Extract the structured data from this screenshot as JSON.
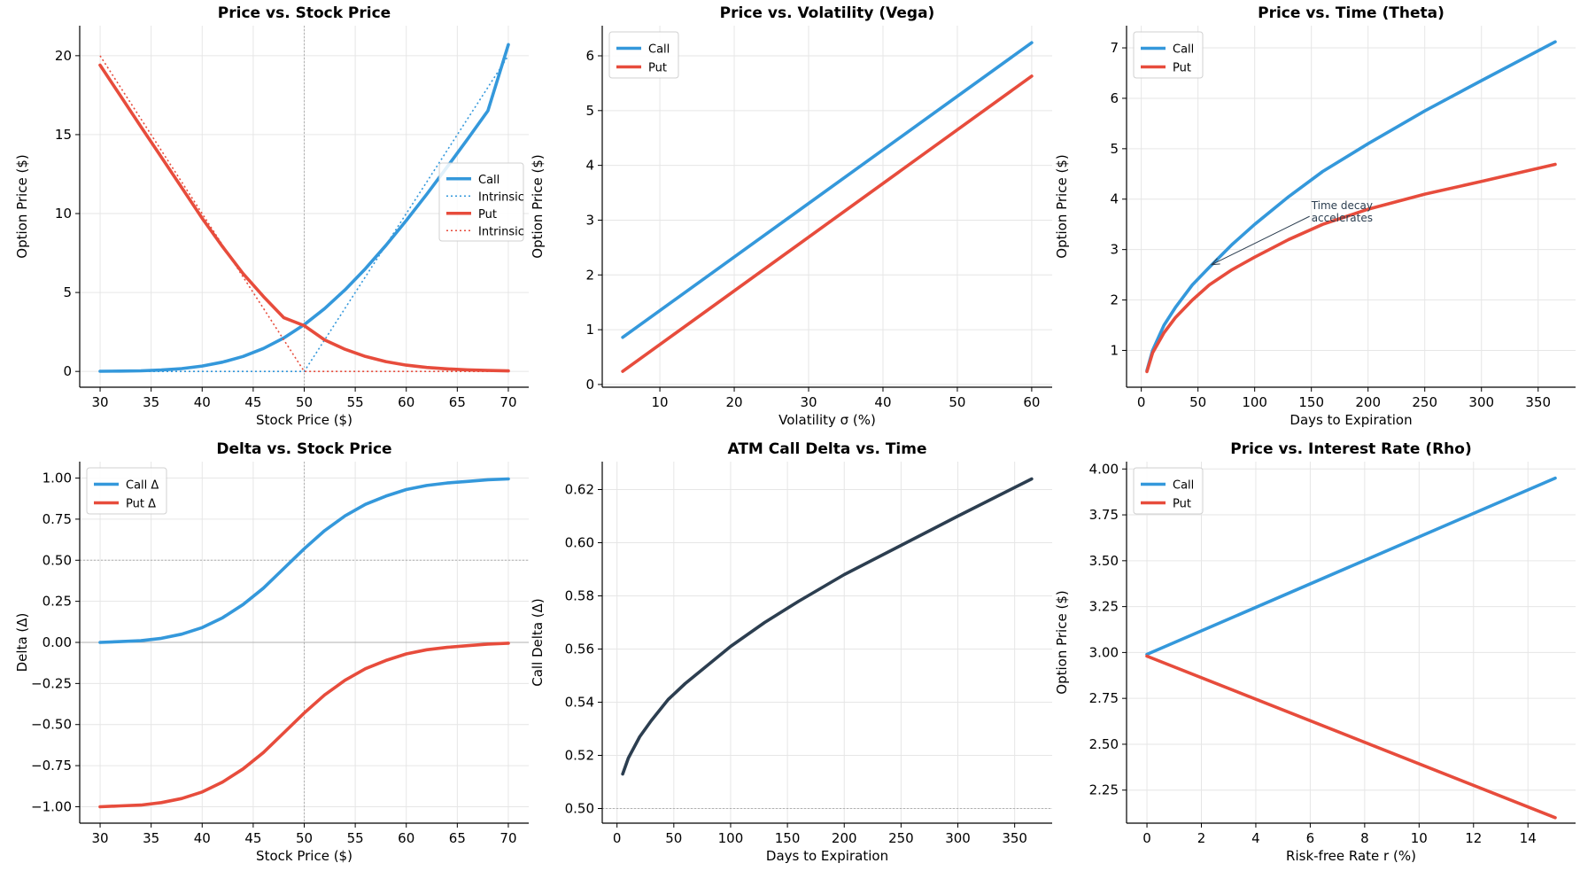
{
  "colors": {
    "call": "#3498db",
    "put": "#e74c3c",
    "dark": "#2c3e50",
    "grid": "#e6e6e6",
    "ref": "#b0b0b0"
  },
  "chart_data": [
    {
      "type": "line",
      "title": "Price vs. Stock Price",
      "xlabel": "Stock Price ($)",
      "ylabel": "Option Price ($)",
      "xlim": [
        28,
        72
      ],
      "ylim": [
        -1,
        21.9
      ],
      "xticks": [
        30,
        35,
        40,
        45,
        50,
        55,
        60,
        65,
        70
      ],
      "yticks": [
        0,
        5,
        10,
        15,
        20
      ],
      "grid": true,
      "legend": "center-right",
      "vlines": [
        50
      ],
      "series": [
        {
          "name": "Call",
          "color": "#3498db",
          "style": "solid",
          "x": [
            30,
            32,
            34,
            36,
            38,
            40,
            42,
            44,
            46,
            48,
            50,
            52,
            54,
            56,
            58,
            60,
            62,
            64,
            66,
            68,
            70
          ],
          "y": [
            0.01,
            0.02,
            0.04,
            0.09,
            0.18,
            0.34,
            0.59,
            0.95,
            1.45,
            2.12,
            2.96,
            3.98,
            5.17,
            6.51,
            7.98,
            9.56,
            11.22,
            12.95,
            14.71,
            16.51,
            20.7
          ]
        },
        {
          "name": "Intrinsic",
          "color": "#3498db",
          "style": "dotted",
          "x": [
            30,
            50,
            70
          ],
          "y": [
            0,
            0,
            20
          ]
        },
        {
          "name": "Put",
          "color": "#e74c3c",
          "style": "solid",
          "x": [
            30,
            32,
            34,
            36,
            38,
            40,
            42,
            44,
            46,
            48,
            50,
            52,
            54,
            56,
            58,
            60,
            62,
            64,
            66,
            68,
            70
          ],
          "y": [
            19.4,
            17.45,
            15.5,
            13.57,
            11.64,
            9.7,
            7.9,
            6.2,
            4.75,
            3.4,
            2.9,
            2.0,
            1.4,
            0.95,
            0.62,
            0.4,
            0.25,
            0.16,
            0.1,
            0.06,
            0.03
          ]
        },
        {
          "name": "Intrinsic",
          "color": "#e74c3c",
          "style": "dotted",
          "x": [
            30,
            50,
            70
          ],
          "y": [
            20,
            0,
            0
          ]
        }
      ]
    },
    {
      "type": "line",
      "title": "Price vs. Volatility (Vega)",
      "xlabel": "Volatility σ (%)",
      "ylabel": "Option Price ($)",
      "xlim": [
        2.25,
        62.75
      ],
      "ylim": [
        -0.05,
        6.55
      ],
      "xticks": [
        10,
        20,
        30,
        40,
        50,
        60
      ],
      "yticks": [
        0,
        1,
        2,
        3,
        4,
        5,
        6
      ],
      "grid": true,
      "legend": "top-left",
      "series": [
        {
          "name": "Call",
          "color": "#3498db",
          "style": "solid",
          "x": [
            5,
            60
          ],
          "y": [
            0.86,
            6.24
          ]
        },
        {
          "name": "Put",
          "color": "#e74c3c",
          "style": "solid",
          "x": [
            5,
            60
          ],
          "y": [
            0.24,
            5.63
          ]
        }
      ]
    },
    {
      "type": "line",
      "title": "Price vs. Time (Theta)",
      "xlabel": "Days to Expiration",
      "ylabel": "Option Price ($)",
      "xlim": [
        -13,
        383
      ],
      "ylim": [
        0.27,
        7.44
      ],
      "xticks": [
        0,
        50,
        100,
        150,
        200,
        250,
        300,
        350
      ],
      "yticks": [
        1,
        2,
        3,
        4,
        5,
        6,
        7
      ],
      "grid": true,
      "legend": "top-left",
      "annotation": {
        "lines": [
          "Time decay",
          "accelerates"
        ],
        "xytext": [
          150,
          3.8
        ],
        "xy": [
          62,
          2.7
        ]
      },
      "series": [
        {
          "name": "Call",
          "color": "#3498db",
          "style": "solid",
          "x": [
            5,
            10,
            20,
            30,
            45,
            60,
            80,
            100,
            130,
            160,
            200,
            250,
            300,
            365
          ],
          "y": [
            0.6,
            1.0,
            1.5,
            1.85,
            2.3,
            2.65,
            3.1,
            3.5,
            4.05,
            4.55,
            5.1,
            5.75,
            6.35,
            7.12
          ]
        },
        {
          "name": "Put",
          "color": "#e74c3c",
          "style": "solid",
          "x": [
            5,
            10,
            20,
            30,
            45,
            60,
            80,
            100,
            130,
            160,
            200,
            250,
            300,
            365
          ],
          "y": [
            0.58,
            0.95,
            1.35,
            1.65,
            2.0,
            2.3,
            2.6,
            2.85,
            3.2,
            3.5,
            3.8,
            4.1,
            4.35,
            4.69
          ]
        }
      ]
    },
    {
      "type": "line",
      "title": "Delta vs. Stock Price",
      "xlabel": "Stock Price ($)",
      "ylabel": "Delta (Δ)",
      "xlim": [
        28,
        72
      ],
      "ylim": [
        -1.1,
        1.1
      ],
      "xticks": [
        30,
        35,
        40,
        45,
        50,
        55,
        60,
        65,
        70
      ],
      "yticks": [
        -1.0,
        -0.75,
        -0.5,
        -0.25,
        0.0,
        0.25,
        0.5,
        0.75,
        1.0
      ],
      "ytick_labels": [
        "−1.00",
        "−0.75",
        "−0.50",
        "−0.25",
        "0.00",
        "0.25",
        "0.50",
        "0.75",
        "1.00"
      ],
      "grid": true,
      "legend": "top-left",
      "vlines": [
        50
      ],
      "hlines": [
        0,
        0.5
      ],
      "series": [
        {
          "name": "Call Δ",
          "color": "#3498db",
          "style": "solid",
          "x": [
            30,
            32,
            34,
            36,
            38,
            40,
            42,
            44,
            46,
            48,
            50,
            52,
            54,
            56,
            58,
            60,
            62,
            64,
            66,
            68,
            70
          ],
          "y": [
            0.0,
            0.005,
            0.01,
            0.025,
            0.05,
            0.09,
            0.15,
            0.23,
            0.33,
            0.45,
            0.57,
            0.68,
            0.77,
            0.84,
            0.89,
            0.93,
            0.955,
            0.97,
            0.98,
            0.99,
            0.995
          ]
        },
        {
          "name": "Put Δ",
          "color": "#e74c3c",
          "style": "solid",
          "x": [
            30,
            32,
            34,
            36,
            38,
            40,
            42,
            44,
            46,
            48,
            50,
            52,
            54,
            56,
            58,
            60,
            62,
            64,
            66,
            68,
            70
          ],
          "y": [
            -1.0,
            -0.995,
            -0.99,
            -0.975,
            -0.95,
            -0.91,
            -0.85,
            -0.77,
            -0.67,
            -0.55,
            -0.43,
            -0.32,
            -0.23,
            -0.16,
            -0.11,
            -0.07,
            -0.045,
            -0.03,
            -0.02,
            -0.01,
            -0.005
          ]
        }
      ]
    },
    {
      "type": "line",
      "title": "ATM Call Delta vs. Time",
      "xlabel": "Days to Expiration",
      "ylabel": "Call Delta (Δ)",
      "xlim": [
        -13,
        383
      ],
      "ylim": [
        0.4945,
        0.6305
      ],
      "xticks": [
        0,
        50,
        100,
        150,
        200,
        250,
        300,
        350
      ],
      "yticks": [
        0.5,
        0.52,
        0.54,
        0.56,
        0.58,
        0.6,
        0.62
      ],
      "ytick_labels": [
        "0.50",
        "0.52",
        "0.54",
        "0.56",
        "0.58",
        "0.60",
        "0.62"
      ],
      "grid": true,
      "hlines": [
        0.5
      ],
      "series": [
        {
          "color": "#2c3e50",
          "style": "solid",
          "x": [
            5,
            10,
            20,
            30,
            45,
            60,
            80,
            100,
            130,
            160,
            200,
            250,
            300,
            365
          ],
          "y": [
            0.513,
            0.519,
            0.527,
            0.533,
            0.541,
            0.547,
            0.554,
            0.561,
            0.57,
            0.578,
            0.588,
            0.599,
            0.61,
            0.624
          ]
        }
      ]
    },
    {
      "type": "line",
      "title": "Price vs. Interest Rate (Rho)",
      "xlabel": "Risk-free Rate r (%)",
      "ylabel": "Option Price ($)",
      "xlim": [
        -0.75,
        15.75
      ],
      "ylim": [
        2.07,
        4.04
      ],
      "xticks": [
        0,
        2,
        4,
        6,
        8,
        10,
        12,
        14
      ],
      "yticks": [
        2.25,
        2.5,
        2.75,
        3.0,
        3.25,
        3.5,
        3.75,
        4.0
      ],
      "ytick_labels": [
        "2.25",
        "2.50",
        "2.75",
        "3.00",
        "3.25",
        "3.50",
        "3.75",
        "4.00"
      ],
      "grid": true,
      "legend": "top-left",
      "series": [
        {
          "name": "Call",
          "color": "#3498db",
          "style": "solid",
          "x": [
            0,
            15
          ],
          "y": [
            2.99,
            3.95
          ]
        },
        {
          "name": "Put",
          "color": "#e74c3c",
          "style": "solid",
          "x": [
            0,
            15
          ],
          "y": [
            2.98,
            2.1
          ]
        }
      ]
    }
  ]
}
